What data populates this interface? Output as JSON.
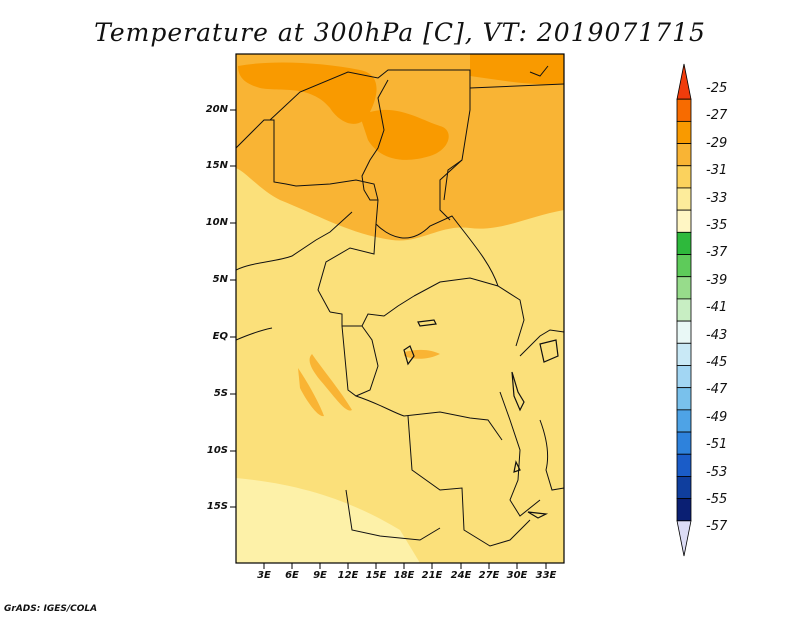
{
  "title": "Temperature at 300hPa [C], VT: 2019071715",
  "credit": "GrADS: IGES/COLA",
  "map": {
    "lat_labels": [
      "20N",
      "15N",
      "10N",
      "5N",
      "EQ",
      "5S",
      "10S",
      "15S"
    ],
    "lon_labels": [
      "3E",
      "6E",
      "9E",
      "12E",
      "15E",
      "18E",
      "21E",
      "24E",
      "27E",
      "30E",
      "33E"
    ]
  },
  "colorbar": {
    "labels": [
      "-25",
      "-27",
      "-29",
      "-31",
      "-33",
      "-35",
      "-37",
      "-39",
      "-41",
      "-43",
      "-45",
      "-47",
      "-49",
      "-51",
      "-53",
      "-55",
      "-57"
    ],
    "colors": [
      "#f03c0c",
      "#f76b00",
      "#f99a00",
      "#f9b434",
      "#fbd25d",
      "#fdec9b",
      "#fff6c4",
      "#2eb93c",
      "#5ecb5a",
      "#97dc8b",
      "#c8eec3",
      "#e9f8f6",
      "#c9e9f6",
      "#a2d6f3",
      "#79c1ec",
      "#4ea3e6",
      "#2e82dc",
      "#1a5cc8",
      "#0f3e9e",
      "#0a1f73",
      "#dcdcf5"
    ]
  }
}
